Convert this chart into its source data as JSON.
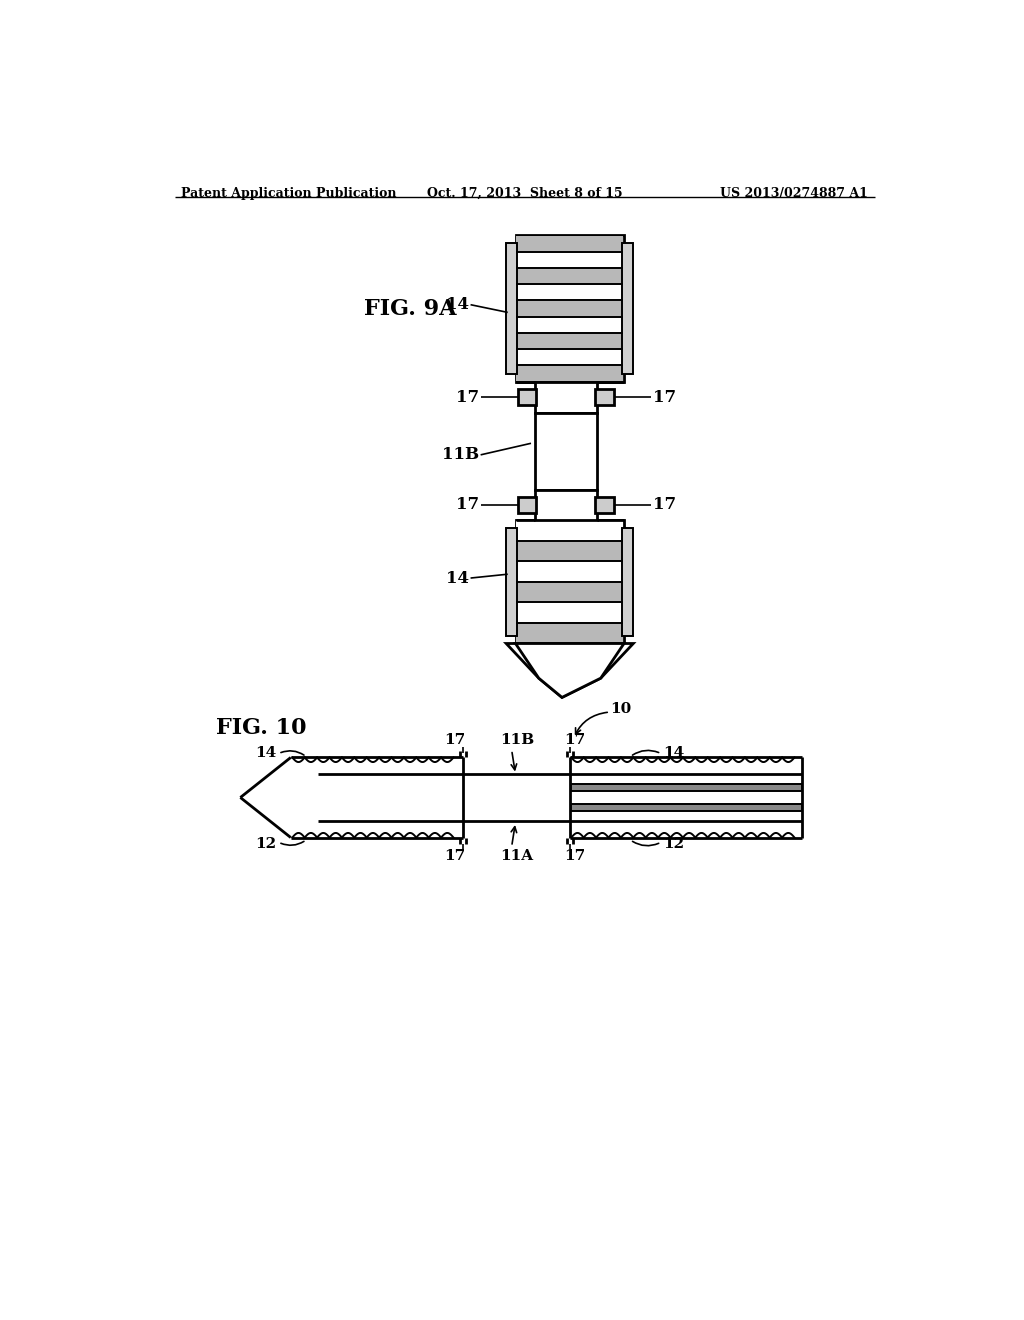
{
  "bg_color": "#ffffff",
  "header_left": "Patent Application Publication",
  "header_mid": "Oct. 17, 2013  Sheet 8 of 15",
  "header_right": "US 2013/0274887 A1",
  "fig9a_label": "FIG. 9A",
  "fig10_label": "FIG. 10",
  "line_color": "#000000",
  "lw": 1.4,
  "lw_thick": 2.0
}
